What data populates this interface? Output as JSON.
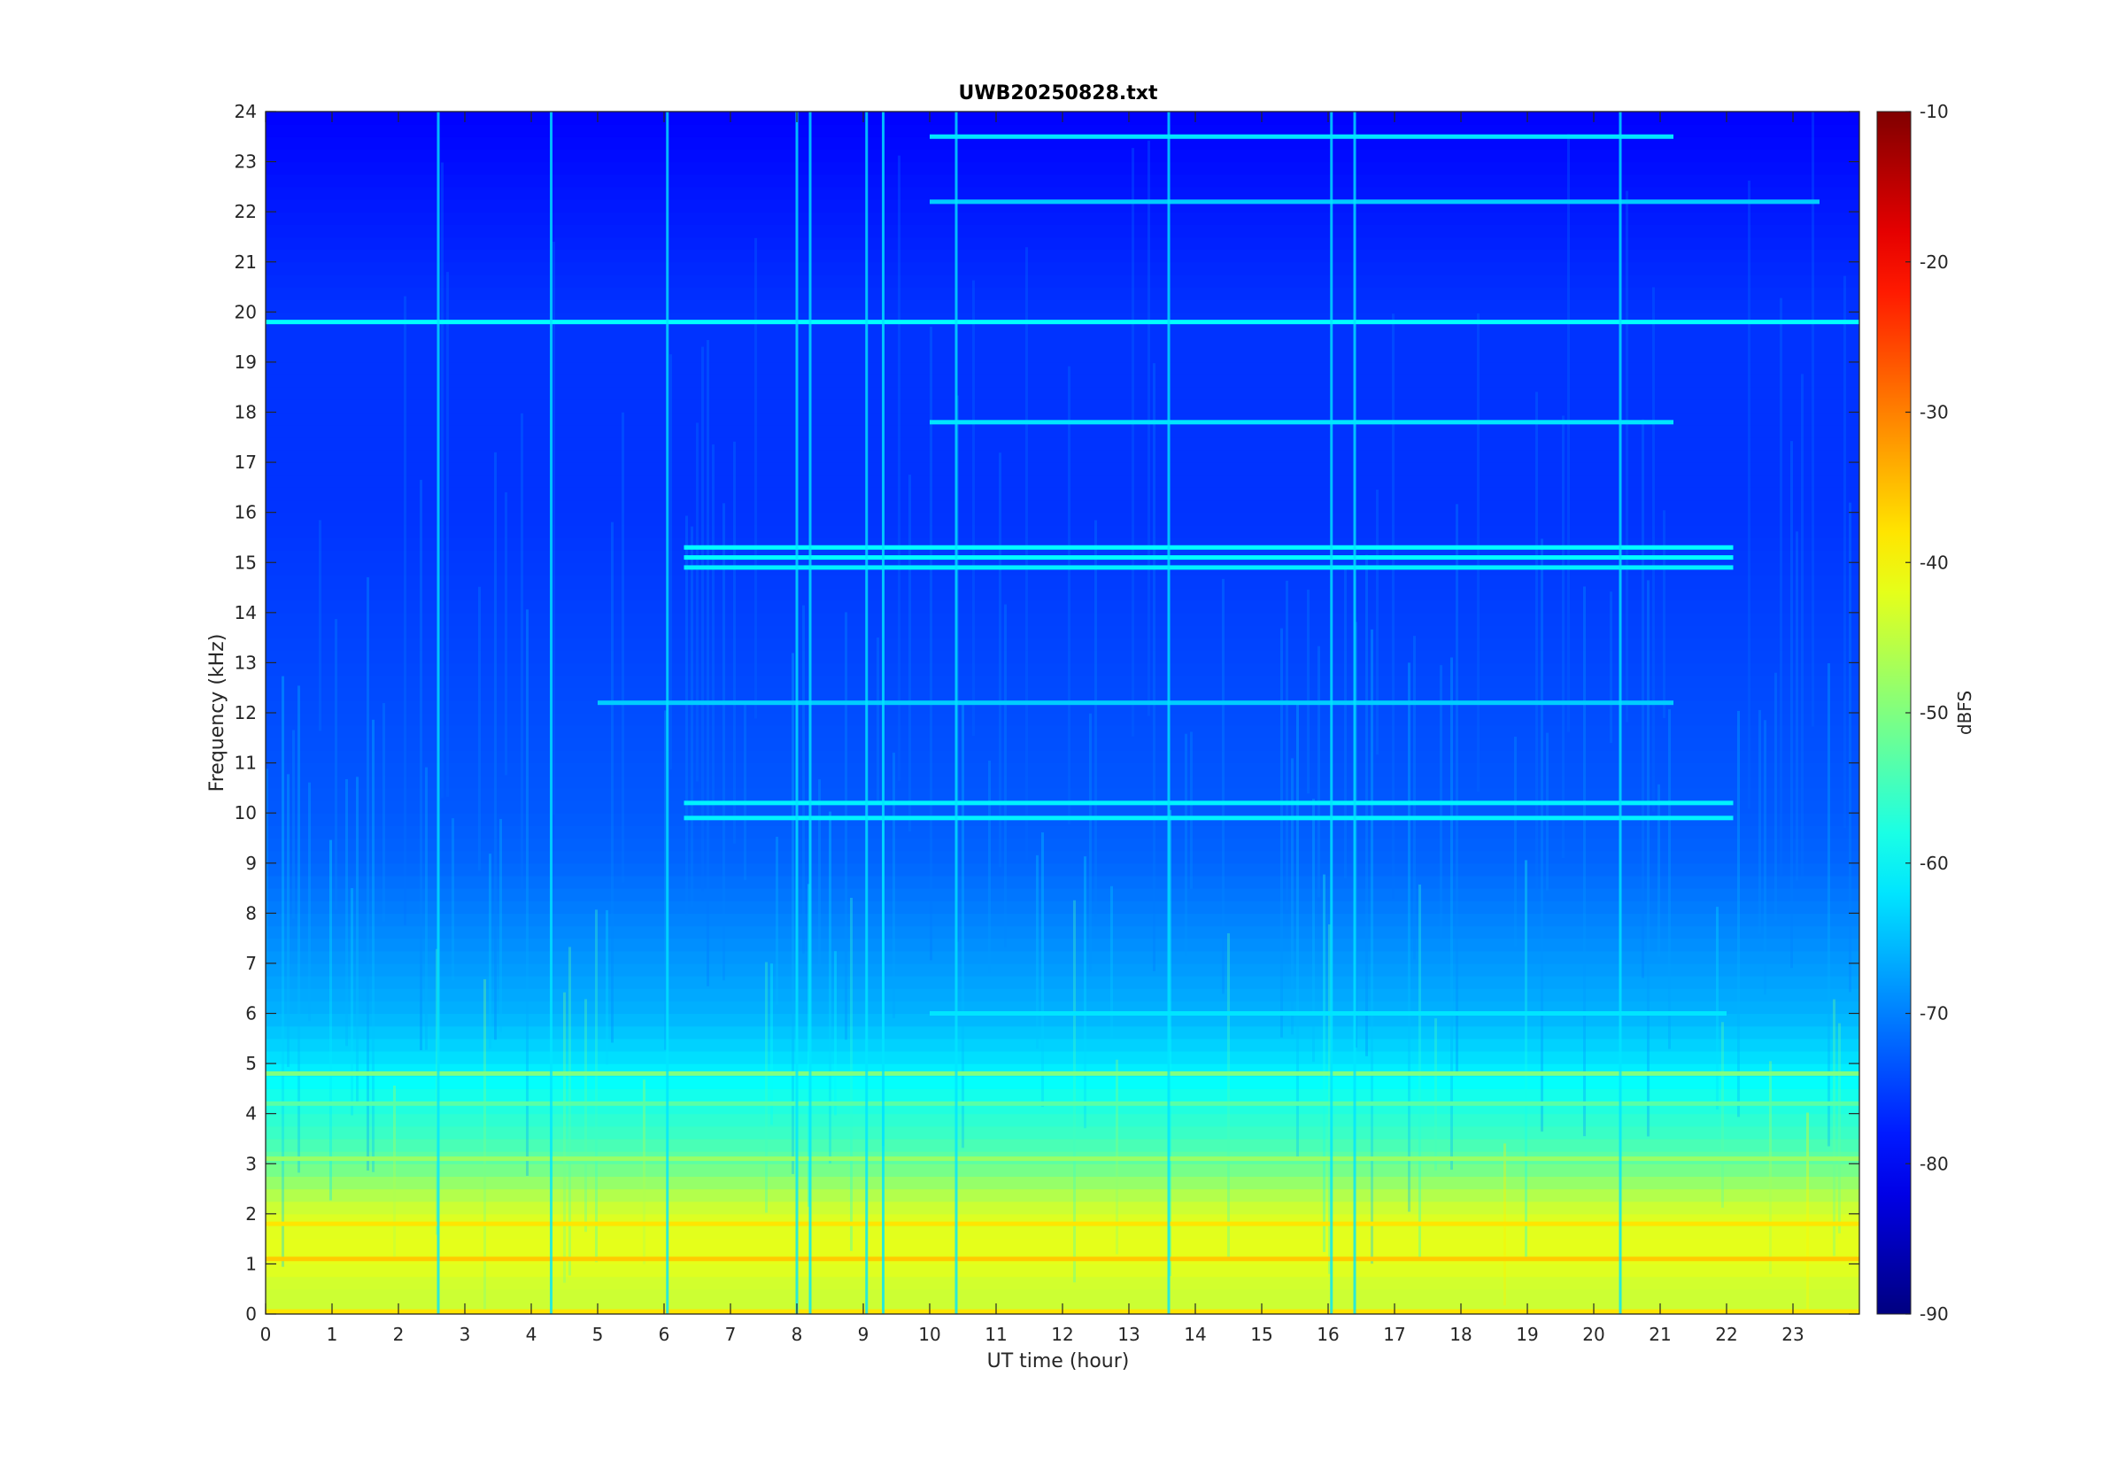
{
  "chart_data": {
    "type": "heatmap",
    "title": "UWB20250828.txt",
    "xlabel": "UT time (hour)",
    "ylabel": "Frequency (kHz)",
    "xlim": [
      0,
      24
    ],
    "ylim": [
      0,
      24
    ],
    "x_ticks": [
      "0",
      "1",
      "2",
      "3",
      "4",
      "5",
      "6",
      "7",
      "8",
      "9",
      "10",
      "11",
      "12",
      "13",
      "14",
      "15",
      "16",
      "17",
      "18",
      "19",
      "20",
      "21",
      "22",
      "23"
    ],
    "y_ticks": [
      "0",
      "1",
      "2",
      "3",
      "4",
      "5",
      "6",
      "7",
      "8",
      "9",
      "10",
      "11",
      "12",
      "13",
      "14",
      "15",
      "16",
      "17",
      "18",
      "19",
      "20",
      "21",
      "22",
      "23",
      "24"
    ],
    "colorbar": {
      "label": "dBFS",
      "range": [
        -90,
        -10
      ],
      "ticks": [
        "-10",
        "-20",
        "-30",
        "-40",
        "-50",
        "-60",
        "-70",
        "-80",
        "-90"
      ],
      "colormap": "jet"
    },
    "background_profile": {
      "description_free_points": true,
      "frequency_khz": [
        0,
        0.5,
        1,
        1.5,
        2,
        2.5,
        3,
        3.5,
        4,
        4.5,
        5,
        6,
        7,
        8,
        9,
        10,
        12,
        14,
        16,
        18,
        20,
        22,
        24
      ],
      "level_dbfs": [
        -44,
        -44,
        -42,
        -42,
        -43,
        -47,
        -52,
        -55,
        -57,
        -59,
        -62,
        -66,
        -68,
        -70,
        -72,
        -73,
        -74,
        -75,
        -76,
        -76,
        -76,
        -78,
        -80
      ]
    },
    "horizontal_lines": [
      {
        "freq_khz": 19.8,
        "t_start": 0,
        "t_end": 24,
        "level_dbfs": -60
      },
      {
        "freq_khz": 23.5,
        "t_start": 10,
        "t_end": 21.2,
        "level_dbfs": -62
      },
      {
        "freq_khz": 22.2,
        "t_start": 10,
        "t_end": 23.4,
        "level_dbfs": -64
      },
      {
        "freq_khz": 17.8,
        "t_start": 10,
        "t_end": 21.2,
        "level_dbfs": -62
      },
      {
        "freq_khz": 15.3,
        "t_start": 6.3,
        "t_end": 22.1,
        "level_dbfs": -60
      },
      {
        "freq_khz": 15.1,
        "t_start": 6.3,
        "t_end": 22.1,
        "level_dbfs": -60
      },
      {
        "freq_khz": 14.9,
        "t_start": 6.3,
        "t_end": 22.1,
        "level_dbfs": -61
      },
      {
        "freq_khz": 10.2,
        "t_start": 6.3,
        "t_end": 22.1,
        "level_dbfs": -61
      },
      {
        "freq_khz": 9.9,
        "t_start": 6.3,
        "t_end": 22.1,
        "level_dbfs": -61
      },
      {
        "freq_khz": 12.2,
        "t_start": 5,
        "t_end": 21.2,
        "level_dbfs": -64
      },
      {
        "freq_khz": 6.0,
        "t_start": 10,
        "t_end": 22,
        "level_dbfs": -62
      },
      {
        "freq_khz": 4.8,
        "t_start": 0,
        "t_end": 24,
        "level_dbfs": -50
      },
      {
        "freq_khz": 4.2,
        "t_start": 0,
        "t_end": 24,
        "level_dbfs": -53
      },
      {
        "freq_khz": 3.1,
        "t_start": 0,
        "t_end": 24,
        "level_dbfs": -48
      },
      {
        "freq_khz": 1.8,
        "t_start": 0,
        "t_end": 24,
        "level_dbfs": -38
      },
      {
        "freq_khz": 1.1,
        "t_start": 0,
        "t_end": 24,
        "level_dbfs": -36
      },
      {
        "freq_khz": 0.05,
        "t_start": 0,
        "t_end": 24,
        "level_dbfs": -38
      }
    ],
    "vertical_lines_ut_hour": [
      2.6,
      4.3,
      6.05,
      8.0,
      8.2,
      9.05,
      9.3,
      10.4,
      13.6,
      16.05,
      16.4,
      20.4
    ]
  }
}
